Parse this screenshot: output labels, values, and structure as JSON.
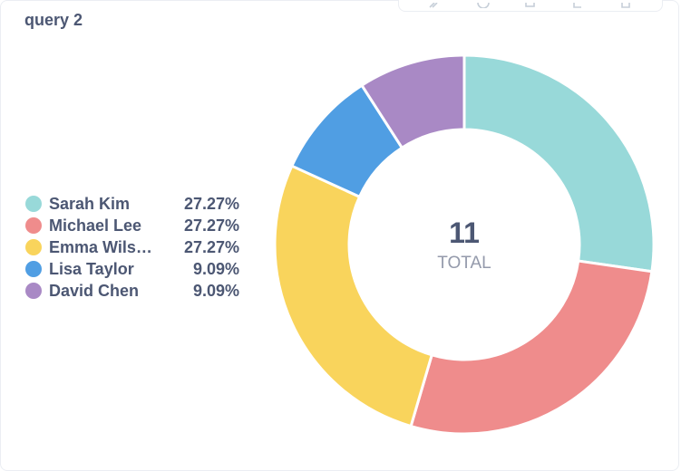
{
  "card": {
    "title": "query 2"
  },
  "action_bar": {
    "icons": [
      "edit-icon",
      "clock-icon",
      "duplicate-icon",
      "move-icon",
      "trash-icon"
    ]
  },
  "legend": {
    "items": [
      {
        "label": "Sarah Kim",
        "percent": "27.27%",
        "color": "#98d9d9"
      },
      {
        "label": "Michael Lee",
        "percent": "27.27%",
        "color": "#ef8c8c"
      },
      {
        "label": "Emma Wils…",
        "percent": "27.27%",
        "color": "#f9d45c"
      },
      {
        "label": "Lisa Taylor",
        "percent": "9.09%",
        "color": "#509ee3"
      },
      {
        "label": "David Chen",
        "percent": "9.09%",
        "color": "#a989c5"
      }
    ]
  },
  "center": {
    "total": "11",
    "label": "TOTAL"
  },
  "chart_data": {
    "type": "pie",
    "title": "query 2",
    "categories": [
      "Sarah Kim",
      "Michael Lee",
      "Emma Wils…",
      "Lisa Taylor",
      "David Chen"
    ],
    "values": [
      3,
      3,
      3,
      1,
      1
    ],
    "percentages": [
      27.27,
      27.27,
      27.27,
      9.09,
      9.09
    ],
    "colors": [
      "#98d9d9",
      "#ef8c8c",
      "#f9d45c",
      "#509ee3",
      "#a989c5"
    ],
    "total": 11,
    "donut": true,
    "legend_position": "left"
  }
}
